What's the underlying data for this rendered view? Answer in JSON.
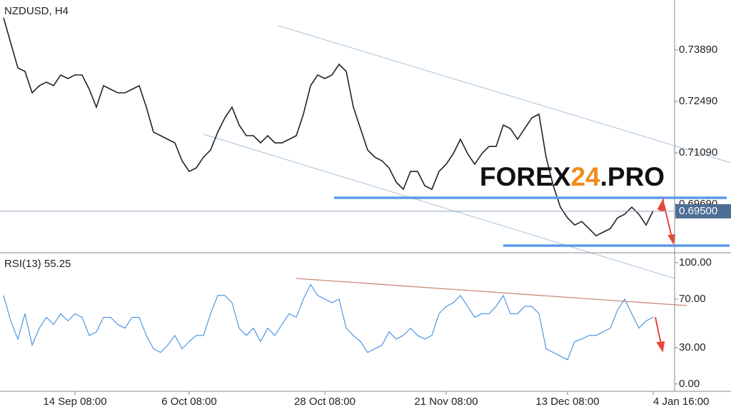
{
  "chart_data": [
    {
      "type": "line",
      "title": "NZDUSD, H4",
      "watermark": [
        "FOREX",
        "24",
        ".PRO"
      ],
      "series": [
        {
          "name": "NZDUSD",
          "color": "#222222",
          "values": [
            0.74765,
            0.74084,
            0.73404,
            0.73307,
            0.72723,
            0.72918,
            0.73015,
            0.72918,
            0.73209,
            0.73112,
            0.73209,
            0.73209,
            0.72821,
            0.72334,
            0.72918,
            0.72821,
            0.72723,
            0.72723,
            0.72821,
            0.72918,
            0.72334,
            0.71654,
            0.71557,
            0.71459,
            0.71362,
            0.70876,
            0.70584,
            0.70682,
            0.70973,
            0.71168,
            0.71654,
            0.72043,
            0.72334,
            0.71848,
            0.71557,
            0.71557,
            0.71362,
            0.71557,
            0.71362,
            0.71362,
            0.71459,
            0.71557,
            0.7214,
            0.72918,
            0.73209,
            0.73112,
            0.73209,
            0.73501,
            0.73307,
            0.72334,
            0.71751,
            0.71168,
            0.70973,
            0.70876,
            0.70682,
            0.70293,
            0.70098,
            0.70584,
            0.70584,
            0.70196,
            0.70098,
            0.70584,
            0.70779,
            0.71071,
            0.71459,
            0.71071,
            0.70779,
            0.71071,
            0.71265,
            0.71265,
            0.71848,
            0.71751,
            0.71459,
            0.71751,
            0.72043,
            0.7214,
            0.70973,
            0.70196,
            0.69612,
            0.69321,
            0.69126,
            0.69223,
            0.69029,
            0.68834,
            0.68932,
            0.69029,
            0.69321,
            0.69418,
            0.69612,
            0.69418,
            0.69126,
            0.69515
          ]
        }
      ],
      "current_price": {
        "value": 0.695,
        "label": "0.69500"
      },
      "ylim": [
        0.6841,
        0.7525
      ],
      "yticks": [
        {
          "value": 0.7389,
          "label": "0.73890"
        },
        {
          "value": 0.7249,
          "label": "0.72490"
        },
        {
          "value": 0.7109,
          "label": "0.71090"
        },
        {
          "value": 0.6969,
          "label": "0.69690"
        }
      ],
      "xlim": [
        -0.5,
        94
      ],
      "xticks": [
        {
          "value": 10,
          "label": "14 Sep 08:00"
        },
        {
          "value": 26,
          "label": "6 Oct 08:00"
        },
        {
          "value": 45,
          "label": "28 Oct 08:00"
        },
        {
          "value": 62,
          "label": "21 Nov 08:00"
        },
        {
          "value": 79,
          "label": "13 Dec 08:00"
        },
        {
          "value": 91,
          "label": "4 Jan 16:00"
        }
      ]
    },
    {
      "type": "line",
      "title": "RSI(13) 55.25",
      "series": [
        {
          "name": "RSI(13)",
          "color": "#3d8fe0",
          "values": [
            73,
            52,
            37,
            58,
            32,
            46,
            55,
            49,
            58,
            52,
            58,
            55,
            40,
            43,
            55,
            55,
            49,
            46,
            55,
            55,
            40,
            29,
            26,
            32,
            40,
            29,
            35,
            40,
            40,
            58,
            73,
            73,
            67,
            46,
            40,
            46,
            35,
            46,
            40,
            49,
            58,
            55,
            70,
            82,
            73,
            70,
            67,
            70,
            46,
            40,
            35,
            26,
            29,
            32,
            43,
            37,
            40,
            46,
            40,
            37,
            40,
            58,
            64,
            67,
            73,
            64,
            55,
            58,
            58,
            64,
            73,
            58,
            58,
            64,
            64,
            58,
            29,
            26,
            23,
            20,
            35,
            37,
            40,
            40,
            43,
            46,
            61,
            70,
            58,
            46,
            52,
            55
          ]
        }
      ],
      "ylim": [
        -6,
        107
      ],
      "yticks": [
        {
          "value": 100,
          "label": "100.00"
        },
        {
          "value": 70,
          "label": "70.00"
        },
        {
          "value": 30,
          "label": "30.00"
        },
        {
          "value": 0,
          "label": "0.00"
        }
      ]
    }
  ]
}
